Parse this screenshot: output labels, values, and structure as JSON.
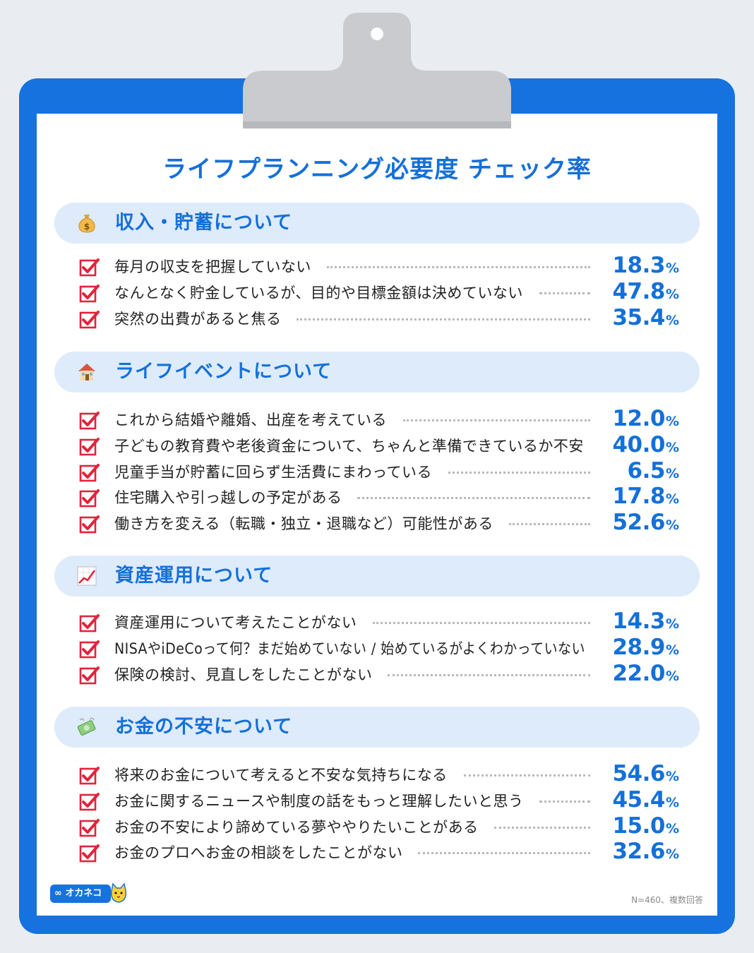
{
  "title": "ライフプランニング必要度 チェック率",
  "colors": {
    "accent": "#1470d9",
    "board": "#1572de",
    "section_bg": "#deebfb",
    "check": "#e0243c",
    "dots": "#b9b9b9"
  },
  "chart_data": {
    "type": "table",
    "title": "ライフプランニング必要度 チェック率",
    "unit": "%",
    "sections": [
      {
        "title": "収入・貯蓄について",
        "icon": "money-bag-icon",
        "items": [
          {
            "label": "毎月の収支を把握していない",
            "value": "18.3"
          },
          {
            "label": "なんとなく貯金しているが、目的や目標金額は決めていない",
            "value": "47.8"
          },
          {
            "label": "突然の出費があると焦る",
            "value": "35.4"
          }
        ]
      },
      {
        "title": "ライフイベントについて",
        "icon": "house-icon",
        "items": [
          {
            "label": "これから結婚や離婚、出産を考えている",
            "value": "12.0"
          },
          {
            "label": "子どもの教育費や老後資金について、ちゃんと準備できているか不安",
            "value": "40.0"
          },
          {
            "label": "児童手当が貯蓄に回らず生活費にまわっている",
            "value": "6.5"
          },
          {
            "label": "住宅購入や引っ越しの予定がある",
            "value": "17.8"
          },
          {
            "label": "働き方を変える（転職・独立・退職など）可能性がある",
            "value": "52.6"
          }
        ]
      },
      {
        "title": "資産運用について",
        "icon": "chart-up-icon",
        "items": [
          {
            "label": "資産運用について考えたことがない",
            "value": "14.3"
          },
          {
            "label": "NISAやiDeCoって何？まだ始めていない / 始めているがよくわかっていない",
            "value": "28.9"
          },
          {
            "label": "保険の検討、見直しをしたことがない",
            "value": "22.0"
          }
        ]
      },
      {
        "title": "お金の不安について",
        "icon": "flying-money-icon",
        "items": [
          {
            "label": "将来のお金について考えると不安な気持ちになる",
            "value": "54.6"
          },
          {
            "label": "お金に関するニュースや制度の話をもっと理解したいと思う",
            "value": "45.4"
          },
          {
            "label": "お金の不安により諦めている夢ややりたいことがある",
            "value": "15.0"
          },
          {
            "label": "お金のプロへお金の相談をしたことがない",
            "value": "32.6"
          }
        ]
      }
    ]
  },
  "logo": {
    "text": "∞ オカネコ",
    "icon": "cat-mascot-icon"
  },
  "footnote": "N=460、複数回答"
}
